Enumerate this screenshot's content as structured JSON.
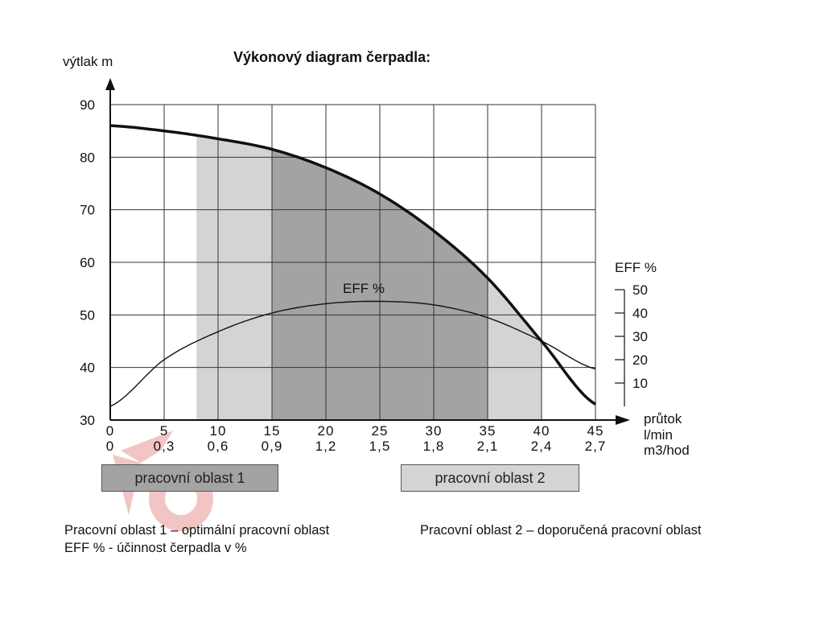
{
  "chart_data": {
    "type": "line",
    "title": "Výkonový diagram čerpadla:",
    "ylabel": "výtlak  m",
    "y2label_top": "EFF %",
    "xlabel_lines": [
      "průtok",
      "l/min",
      "m3/hod"
    ],
    "ylim": [
      30,
      90
    ],
    "y_ticks": [
      "90",
      "80",
      "70",
      "60",
      "50",
      "40",
      "30"
    ],
    "y2lim": [
      0,
      50
    ],
    "y2_ticks": [
      "50",
      "40",
      "30",
      "20",
      "10"
    ],
    "xlim": [
      0,
      45
    ],
    "x_ticks_lmin": [
      "0",
      "5",
      "10",
      "15",
      "20",
      "25",
      "30",
      "35",
      "40",
      "45"
    ],
    "x_ticks_m3h": [
      "0",
      "0,3",
      "0,6",
      "0,9",
      "1,2",
      "1,5",
      "1,8",
      "2,1",
      "2,4",
      "2,7"
    ],
    "grid": true,
    "series": [
      {
        "name": "",
        "x": [
          0,
          5,
          10,
          15,
          20,
          25,
          30,
          35,
          40,
          45
        ],
        "y": [
          86,
          85,
          83.5,
          81.5,
          78,
          73,
          66,
          57,
          45,
          33
        ]
      },
      {
        "name": "EFF %",
        "x": [
          0,
          5,
          10,
          15,
          20,
          25,
          30,
          35,
          40,
          45
        ],
        "y": [
          0,
          20,
          32,
          40,
          44,
          45,
          43.5,
          38,
          28,
          16
        ]
      }
    ],
    "regions": [
      {
        "label": "pracovní oblast 1",
        "x_range": [
          15,
          35
        ],
        "color": "#a3a3a3"
      },
      {
        "label": "pracovní oblast 2",
        "x_range": [
          8,
          15
        ],
        "color": "#d4d4d4"
      },
      {
        "label": "pracovní oblast 2",
        "x_range": [
          35,
          40
        ],
        "color": "#d4d4d4"
      }
    ],
    "annotation": "EFF %"
  },
  "legend": {
    "area1": "pracovní oblast 1",
    "area2": "pracovní oblast 2",
    "area1_color": "#a3a3a3",
    "area2_color": "#d4d4d4"
  },
  "notes": {
    "line1_left": "Pracovní oblast 1 – optimální pracovní oblast",
    "line1_right": "Pracovní oblast 2 – doporučená pracovní oblast",
    "line2_left": "EFF % - účinnost čerpadla v %"
  }
}
